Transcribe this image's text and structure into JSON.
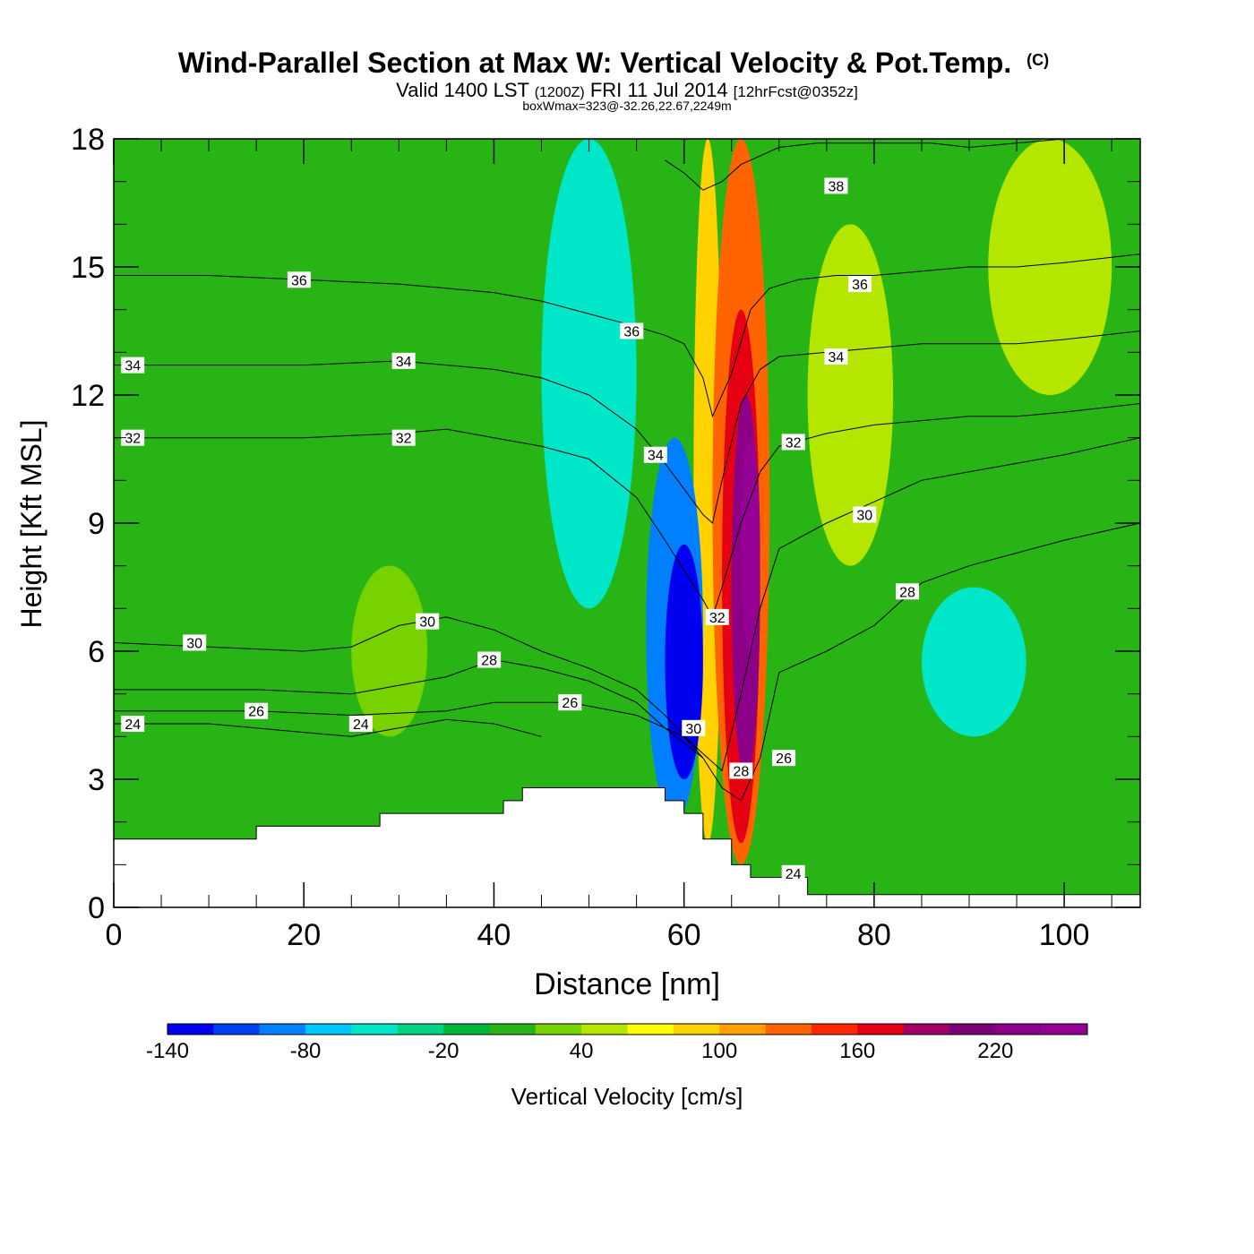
{
  "chart_data": {
    "type": "heatmap",
    "title": "Wind-Parallel Section at Max W: Vertical Velocity & Pot.Temp.",
    "copyright_mark": "(C)",
    "subtitle_main_a": "Valid 1400 LST",
    "subtitle_small_a": "(1200Z)",
    "subtitle_main_b": "FRI 11 Jul 2014",
    "subtitle_small_b": "[12hrFcst@0352z]",
    "subtitle2": "boxWmax=323@-32.26,22.67,2249m",
    "xlabel": "Distance [nm]",
    "ylabel": "Height [Kft MSL]",
    "xlim": [
      0,
      108
    ],
    "ylim": [
      0,
      18
    ],
    "x_ticks": [
      0,
      20,
      40,
      60,
      80,
      100
    ],
    "y_ticks": [
      0,
      3,
      6,
      9,
      12,
      15,
      18
    ],
    "colorbar": {
      "label": "Vertical Velocity [cm/s]",
      "min": -140,
      "step": 20,
      "tick_labels": [
        -140,
        -80,
        -20,
        40,
        100,
        160,
        220
      ],
      "colors": [
        "#0000f0",
        "#0040f0",
        "#0080ff",
        "#00c8ff",
        "#00e6c8",
        "#00d282",
        "#00b43c",
        "#28b414",
        "#78d200",
        "#b4e600",
        "#ffff00",
        "#ffd200",
        "#ffa000",
        "#ff6400",
        "#ff2800",
        "#e60014",
        "#a00064",
        "#7a0078",
        "#8c0088",
        "#950095"
      ]
    },
    "background_w": 0,
    "vertical_velocity_features": [
      {
        "x0": 61,
        "x1": 64,
        "y0": 1.5,
        "y1": 18,
        "value": 80
      },
      {
        "x0": 63,
        "x1": 69,
        "y0": 1.0,
        "y1": 18,
        "value": 120
      },
      {
        "x0": 64,
        "x1": 68,
        "y0": 1.5,
        "y1": 14,
        "value": 170
      },
      {
        "x0": 65,
        "x1": 68,
        "y0": 3,
        "y1": 12,
        "value": 220
      },
      {
        "x0": 66,
        "x1": 68,
        "y0": 6,
        "y1": 11,
        "value": 260
      },
      {
        "x0": 56,
        "x1": 62,
        "y0": 2,
        "y1": 11,
        "value": -100
      },
      {
        "x0": 58,
        "x1": 62,
        "y0": 3,
        "y1": 8.5,
        "value": -140
      },
      {
        "x0": 45,
        "x1": 55,
        "y0": 7,
        "y1": 18,
        "value": -60
      },
      {
        "x0": 85,
        "x1": 96,
        "y0": 4,
        "y1": 7.5,
        "value": -60
      },
      {
        "x0": 92,
        "x1": 105,
        "y0": 12,
        "y1": 18,
        "value": 50
      },
      {
        "x0": 73,
        "x1": 82,
        "y0": 8,
        "y1": 16,
        "value": 50
      },
      {
        "x0": 25,
        "x1": 33,
        "y0": 4,
        "y1": 8,
        "value": 30
      }
    ],
    "terrain_profile": {
      "x": [
        0,
        15,
        15,
        28,
        28,
        41,
        41,
        43,
        43,
        58,
        58,
        60,
        60,
        62,
        62,
        65,
        65,
        67,
        67,
        73,
        73,
        108
      ],
      "y": [
        1.6,
        1.6,
        1.9,
        1.9,
        2.2,
        2.2,
        2.5,
        2.5,
        2.8,
        2.8,
        2.5,
        2.5,
        2.2,
        2.2,
        1.6,
        1.6,
        1.0,
        1.0,
        0.7,
        0.7,
        0.3,
        0.3
      ]
    },
    "theta_contours": [
      {
        "level": 24,
        "x": [
          0,
          10,
          20,
          25,
          30,
          35,
          40,
          45
        ],
        "y": [
          4.3,
          4.3,
          4.1,
          4.0,
          4.2,
          4.4,
          4.3,
          4.0
        ]
      },
      {
        "level": 26,
        "x": [
          0,
          15,
          25,
          35,
          40,
          48,
          55,
          60,
          62
        ],
        "y": [
          4.6,
          4.6,
          4.5,
          4.6,
          4.8,
          4.8,
          4.5,
          4.0,
          3.5
        ]
      },
      {
        "level": 28,
        "x": [
          0,
          15,
          25,
          35,
          40,
          45,
          50,
          55,
          58,
          62,
          64,
          66,
          68,
          70,
          75,
          80,
          85,
          90,
          95,
          100,
          108
        ],
        "y": [
          5.1,
          5.1,
          5.0,
          5.4,
          5.8,
          5.6,
          5.3,
          4.8,
          4.2,
          3.5,
          2.8,
          2.5,
          3.5,
          5.5,
          6.0,
          6.6,
          7.6,
          8.0,
          8.3,
          8.6,
          9.0
        ]
      },
      {
        "level": 30,
        "x": [
          0,
          10,
          20,
          25,
          30,
          35,
          40,
          45,
          50,
          55,
          58,
          61,
          64,
          66,
          68,
          70,
          75,
          80,
          85,
          90,
          95,
          100,
          108
        ],
        "y": [
          6.2,
          6.1,
          6.0,
          6.1,
          6.6,
          6.8,
          6.5,
          6.0,
          5.6,
          5.1,
          4.5,
          3.8,
          3.2,
          5.0,
          7.0,
          8.4,
          9.0,
          9.5,
          10.0,
          10.2,
          10.4,
          10.6,
          11.0
        ]
      },
      {
        "level": 32,
        "x": [
          0,
          10,
          20,
          30,
          35,
          40,
          45,
          50,
          55,
          58,
          62,
          63,
          64,
          66,
          68,
          70,
          75,
          80,
          85,
          90,
          95,
          100,
          108
        ],
        "y": [
          11.0,
          11.0,
          11.0,
          11.1,
          11.2,
          11.0,
          10.8,
          10.5,
          9.6,
          8.6,
          7.2,
          6.8,
          7.5,
          9.0,
          10.2,
          10.8,
          11.1,
          11.3,
          11.4,
          11.5,
          11.5,
          11.6,
          11.8
        ]
      },
      {
        "level": 34,
        "x": [
          0,
          10,
          20,
          30,
          35,
          40,
          45,
          50,
          55,
          58,
          60,
          62,
          63,
          64,
          66,
          68,
          70,
          75,
          80,
          85,
          90,
          95,
          100,
          108
        ],
        "y": [
          12.7,
          12.7,
          12.7,
          12.8,
          12.7,
          12.6,
          12.4,
          12.0,
          11.2,
          10.4,
          9.8,
          9.2,
          9.0,
          10.0,
          11.8,
          12.6,
          12.9,
          13.0,
          13.1,
          13.2,
          13.2,
          13.2,
          13.3,
          13.5
        ]
      },
      {
        "level": 36,
        "x": [
          0,
          10,
          20,
          30,
          40,
          45,
          50,
          55,
          58,
          60,
          62,
          63,
          65,
          67,
          69,
          72,
          76,
          80,
          85,
          90,
          95,
          100,
          108
        ],
        "y": [
          14.8,
          14.8,
          14.7,
          14.6,
          14.4,
          14.2,
          13.9,
          13.6,
          13.4,
          13.2,
          12.4,
          11.5,
          12.5,
          14.0,
          14.5,
          14.7,
          14.8,
          14.8,
          14.9,
          15.0,
          15.0,
          15.1,
          15.3
        ]
      },
      {
        "level": 38,
        "x": [
          58,
          60,
          62,
          64,
          66,
          68,
          70,
          74,
          78,
          82,
          86,
          90,
          95,
          100,
          105,
          108
        ],
        "y": [
          17.5,
          17.2,
          16.8,
          17.0,
          17.4,
          17.6,
          17.8,
          17.9,
          17.9,
          17.9,
          17.9,
          17.8,
          17.9,
          18.0,
          18.0,
          18.0
        ]
      }
    ],
    "contour_labels": [
      {
        "text": "36",
        "x": 19.5,
        "y": 14.7
      },
      {
        "text": "36",
        "x": 54.5,
        "y": 13.5
      },
      {
        "text": "36",
        "x": 78.5,
        "y": 14.6
      },
      {
        "text": "38",
        "x": 76,
        "y": 16.9
      },
      {
        "text": "34",
        "x": 2,
        "y": 12.7
      },
      {
        "text": "34",
        "x": 30.5,
        "y": 12.8
      },
      {
        "text": "34",
        "x": 76,
        "y": 12.9
      },
      {
        "text": "34",
        "x": 57,
        "y": 10.6
      },
      {
        "text": "32",
        "x": 2,
        "y": 11.0
      },
      {
        "text": "32",
        "x": 30.5,
        "y": 11.0
      },
      {
        "text": "32",
        "x": 71.5,
        "y": 10.9
      },
      {
        "text": "32",
        "x": 63.5,
        "y": 6.8
      },
      {
        "text": "30",
        "x": 8.5,
        "y": 6.2
      },
      {
        "text": "30",
        "x": 33,
        "y": 6.7
      },
      {
        "text": "30",
        "x": 79,
        "y": 9.2
      },
      {
        "text": "30",
        "x": 61,
        "y": 4.2
      },
      {
        "text": "28",
        "x": 83.5,
        "y": 7.4
      },
      {
        "text": "28",
        "x": 66,
        "y": 3.2
      },
      {
        "text": "28",
        "x": 39.5,
        "y": 5.8
      },
      {
        "text": "26",
        "x": 15,
        "y": 4.6
      },
      {
        "text": "26",
        "x": 48,
        "y": 4.8
      },
      {
        "text": "26",
        "x": 70.5,
        "y": 3.5
      },
      {
        "text": "24",
        "x": 2,
        "y": 4.3
      },
      {
        "text": "24",
        "x": 26,
        "y": 4.3
      },
      {
        "text": "24",
        "x": 71.5,
        "y": 0.8
      }
    ]
  }
}
